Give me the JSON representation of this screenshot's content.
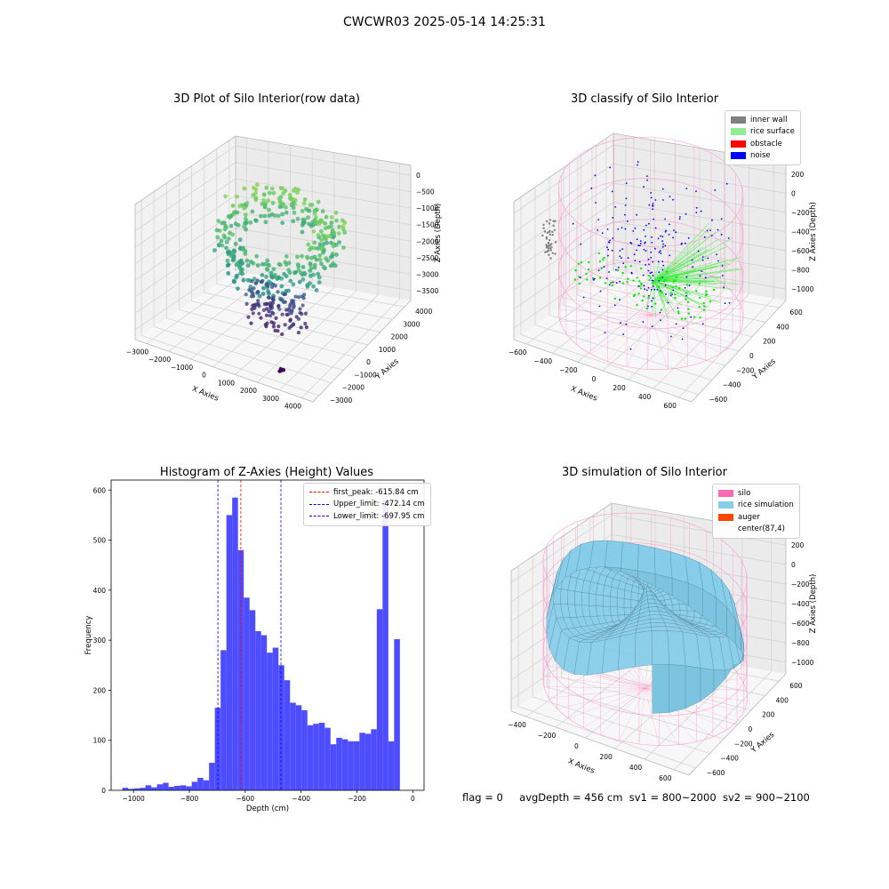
{
  "suptitle": "CWCWR03 2025-05-14 14:25:31",
  "status": {
    "flag": "flag = 0",
    "avg_depth": "avgDepth = 456 cm",
    "sv1": "sv1 = 800~2000",
    "sv2": "sv2 = 900~2100"
  },
  "chart_data": [
    {
      "id": "raw",
      "type": "scatter3d",
      "title": "3D Plot of Silo Interior(row data)",
      "xlabel": "X Axies",
      "ylabel": "Y Axies",
      "zlabel": "Z Axies (Depth)",
      "x_ticks": [
        "−3000",
        "−2000",
        "−1000",
        "0",
        "1000",
        "2000",
        "3000",
        "4000"
      ],
      "y_ticks": [
        "−3000",
        "−2000",
        "−1000",
        "0",
        "1000",
        "2000",
        "3000",
        "4000"
      ],
      "z_ticks": [
        "0",
        "−500",
        "−1000",
        "−1500",
        "−2000",
        "−2500",
        "−3000",
        "−3500"
      ],
      "xlim": [
        -3500,
        4500
      ],
      "ylim": [
        -3500,
        4500
      ],
      "zlim": [
        -3800,
        200
      ],
      "colormap": "viridis"
    },
    {
      "id": "classify",
      "type": "scatter3d",
      "title": "3D classify of Silo Interior",
      "xlabel": "X Axies",
      "ylabel": "Y Axies",
      "zlabel": "Z Axies (Depth)",
      "x_ticks": [
        "−600",
        "−400",
        "−200",
        "0",
        "200",
        "400",
        "600"
      ],
      "y_ticks": [
        "−600",
        "−400",
        "−200",
        "0",
        "200",
        "400",
        "600"
      ],
      "z_ticks": [
        "200",
        "0",
        "−200",
        "−400",
        "−600",
        "−800",
        "−1000"
      ],
      "xlim": [
        -650,
        700
      ],
      "ylim": [
        -650,
        700
      ],
      "zlim": [
        -1100,
        300
      ],
      "legend": [
        {
          "label": "inner wall",
          "color": "#808080"
        },
        {
          "label": "rice surface",
          "color": "#90ee90"
        },
        {
          "label": "obstacle",
          "color": "#ff0000"
        },
        {
          "label": "noise",
          "color": "#0000ff"
        }
      ]
    },
    {
      "id": "hist",
      "type": "bar",
      "title": "Histogram of Z-Axies (Height) Values",
      "xlabel": "Depth (cm)",
      "ylabel": "Frequency",
      "xlim": [
        -1080,
        40
      ],
      "ylim": [
        0,
        620
      ],
      "x_ticks": [
        -1000,
        -800,
        -600,
        -400,
        -200,
        0
      ],
      "y_ticks": [
        0,
        100,
        200,
        300,
        400,
        500,
        600
      ],
      "bar_color": "#4d4dff",
      "bin_start": -1040,
      "bin_width": 20.7,
      "values": [
        5,
        3,
        4,
        5,
        10,
        6,
        12,
        15,
        7,
        9,
        10,
        8,
        17,
        25,
        20,
        55,
        165,
        280,
        550,
        585,
        480,
        385,
        360,
        318,
        310,
        275,
        285,
        250,
        220,
        175,
        170,
        160,
        130,
        133,
        135,
        125,
        92,
        105,
        102,
        98,
        98,
        115,
        113,
        122,
        362,
        580,
        98,
        302
      ],
      "lines": [
        {
          "label": "first_peak: -615.84 cm",
          "x": -615.84,
          "color": "#ff0000"
        },
        {
          "label": "Upper_limit: -472.14 cm",
          "x": -472.14,
          "color": "#0000ff"
        },
        {
          "label": "Lower_limit: -697.95 cm",
          "x": -697.95,
          "color": "#0000ff"
        }
      ]
    },
    {
      "id": "sim",
      "type": "surface3d",
      "title": "3D simulation of Silo Interior",
      "xlabel": "X Axies",
      "ylabel": "Y Axies",
      "zlabel": "Z Axies (Depth)",
      "x_ticks": [
        "−400",
        "−200",
        "0",
        "200",
        "400",
        "600"
      ],
      "y_ticks": [
        "−600",
        "−400",
        "−200",
        "0",
        "200",
        "400",
        "600"
      ],
      "z_ticks": [
        "200",
        "0",
        "−200",
        "−400",
        "−600",
        "−800",
        "−1000"
      ],
      "xlim": [
        -500,
        700
      ],
      "ylim": [
        -650,
        700
      ],
      "zlim": [
        -1100,
        300
      ],
      "legend": [
        {
          "label": "silo",
          "color": "#ff69b4"
        },
        {
          "label": "rice simulation",
          "color": "#87ceeb"
        },
        {
          "label": "auger",
          "color": "#ff4500"
        },
        {
          "label": "center(87,4)",
          "color": ""
        }
      ]
    }
  ]
}
